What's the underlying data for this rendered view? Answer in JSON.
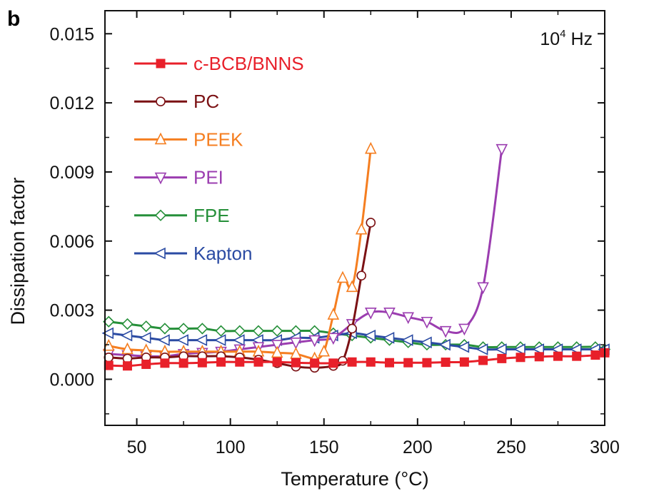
{
  "figure": {
    "panel_label": "b"
  },
  "chart_data": {
    "type": "line",
    "title": "",
    "xlabel": "Temperature (°C)",
    "ylabel": "Dissipation factor",
    "xlim": [
      33,
      300
    ],
    "ylim": [
      -0.002,
      0.016
    ],
    "xticks": [
      50,
      100,
      150,
      200,
      250,
      300
    ],
    "yticks": [
      0.0,
      0.003,
      0.006,
      0.009,
      0.012,
      0.015
    ],
    "xtick_labels": [
      "50",
      "100",
      "150",
      "200",
      "250",
      "300"
    ],
    "ytick_labels": [
      "0.000",
      "0.003",
      "0.006",
      "0.009",
      "0.012",
      "0.015"
    ],
    "annotation": {
      "base": "10",
      "exp": "4",
      "unit": " Hz"
    },
    "legend_position": "top-left",
    "series": [
      {
        "name": "c-BCB/BNNS",
        "color": "#e8202a",
        "marker": "square-filled",
        "x": [
          35,
          45,
          55,
          65,
          75,
          85,
          95,
          105,
          115,
          125,
          135,
          145,
          155,
          165,
          175,
          185,
          195,
          205,
          215,
          225,
          235,
          245,
          255,
          265,
          275,
          285,
          295,
          300
        ],
        "y": [
          0.0006,
          0.00058,
          0.00065,
          0.0007,
          0.0007,
          0.00072,
          0.00075,
          0.00075,
          0.00075,
          0.00075,
          0.00072,
          0.0007,
          0.0007,
          0.00075,
          0.00075,
          0.00072,
          0.00072,
          0.00072,
          0.00074,
          0.00075,
          0.00082,
          0.0009,
          0.00095,
          0.00098,
          0.001,
          0.001,
          0.00105,
          0.00115
        ]
      },
      {
        "name": "PC",
        "color": "#7b1114",
        "marker": "circle-open",
        "x": [
          35,
          45,
          55,
          65,
          75,
          85,
          95,
          105,
          115,
          125,
          135,
          145,
          155,
          160,
          165,
          170,
          175
        ],
        "y": [
          0.00095,
          0.0009,
          0.00095,
          0.00095,
          0.001,
          0.001,
          0.001,
          0.00095,
          0.00085,
          0.0007,
          0.00055,
          0.0005,
          0.00058,
          0.0008,
          0.0022,
          0.0045,
          0.0068
        ]
      },
      {
        "name": "PEEK",
        "color": "#f57e20",
        "marker": "triangle-up-open",
        "x": [
          35,
          45,
          55,
          65,
          75,
          85,
          95,
          105,
          115,
          125,
          135,
          145,
          150,
          155,
          160,
          165,
          170,
          175
        ],
        "y": [
          0.00145,
          0.0013,
          0.00125,
          0.0012,
          0.0012,
          0.0012,
          0.0012,
          0.0012,
          0.0012,
          0.00115,
          0.0011,
          0.0009,
          0.0012,
          0.0028,
          0.0044,
          0.004,
          0.0065,
          0.01
        ]
      },
      {
        "name": "PEI",
        "color": "#9b3db0",
        "marker": "triangle-down-open",
        "x": [
          35,
          45,
          55,
          65,
          75,
          85,
          95,
          105,
          115,
          125,
          135,
          145,
          155,
          165,
          175,
          185,
          195,
          205,
          215,
          225,
          235,
          245
        ],
        "y": [
          0.0011,
          0.00105,
          0.001,
          0.001,
          0.0011,
          0.00115,
          0.0012,
          0.0013,
          0.0014,
          0.0015,
          0.0016,
          0.0017,
          0.0018,
          0.0024,
          0.0029,
          0.0029,
          0.0027,
          0.0025,
          0.0021,
          0.0022,
          0.004,
          0.01
        ]
      },
      {
        "name": "FPE",
        "color": "#26903a",
        "marker": "diamond-open",
        "x": [
          35,
          45,
          55,
          65,
          75,
          85,
          95,
          105,
          115,
          125,
          135,
          145,
          155,
          165,
          175,
          185,
          195,
          205,
          215,
          225,
          235,
          245,
          255,
          265,
          275,
          285,
          295,
          300
        ],
        "y": [
          0.0025,
          0.0024,
          0.0023,
          0.0022,
          0.0022,
          0.0022,
          0.0021,
          0.0021,
          0.0021,
          0.0021,
          0.0021,
          0.0021,
          0.002,
          0.0019,
          0.0018,
          0.0017,
          0.0016,
          0.0015,
          0.0015,
          0.0015,
          0.0014,
          0.0014,
          0.0014,
          0.0014,
          0.0014,
          0.0014,
          0.0014,
          0.0013
        ]
      },
      {
        "name": "Kapton",
        "color": "#2b4ba3",
        "marker": "triangle-left-open",
        "x": [
          35,
          45,
          55,
          65,
          75,
          85,
          95,
          105,
          115,
          125,
          135,
          145,
          155,
          165,
          175,
          185,
          195,
          205,
          215,
          225,
          235,
          245,
          255,
          265,
          275,
          285,
          295,
          300
        ],
        "y": [
          0.002,
          0.0019,
          0.0018,
          0.0017,
          0.0017,
          0.0017,
          0.0017,
          0.0017,
          0.0017,
          0.0017,
          0.0018,
          0.0018,
          0.0019,
          0.002,
          0.0019,
          0.0018,
          0.0017,
          0.0016,
          0.0015,
          0.0014,
          0.0013,
          0.0013,
          0.0013,
          0.0013,
          0.0013,
          0.0013,
          0.0013,
          0.0013
        ]
      }
    ]
  }
}
